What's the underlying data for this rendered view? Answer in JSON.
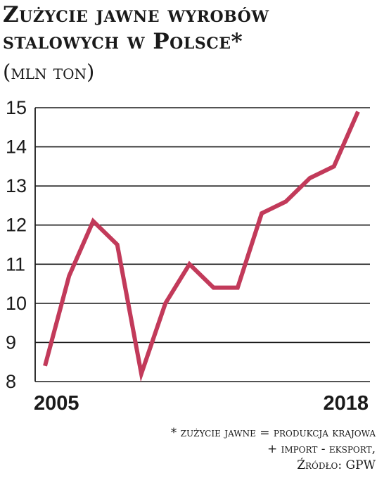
{
  "header": {
    "title": "Zużycie jawne wyrobów stalowych w Polsce*",
    "unit": "(mln ton)"
  },
  "footnote": {
    "line1": "* zużycie jawne = produkcja krajowa",
    "line2": "+ import - eksport,",
    "line3": "Źródło: GPW"
  },
  "colors": {
    "line": "#c23a5a",
    "grid": "#1a1a1a",
    "text": "#1a1a1a"
  },
  "chart_data": {
    "type": "line",
    "title": "Zużycie jawne wyrobów stalowych w Polsce*",
    "ylabel": "(mln ton)",
    "xlabel": "",
    "x": [
      2005,
      2006,
      2007,
      2008,
      2009,
      2010,
      2011,
      2012,
      2013,
      2014,
      2015,
      2016,
      2017,
      2018
    ],
    "series": [
      {
        "values": [
          8.4,
          10.7,
          12.1,
          11.5,
          8.2,
          10.0,
          11.0,
          10.4,
          10.4,
          12.3,
          12.6,
          13.2,
          13.5,
          14.9
        ]
      }
    ],
    "x_tick_labels": [
      "2005",
      "2018"
    ],
    "y_ticks": [
      8,
      9,
      10,
      11,
      12,
      13,
      14,
      15
    ],
    "ylim": [
      8,
      15
    ],
    "grid": "horizontal"
  }
}
